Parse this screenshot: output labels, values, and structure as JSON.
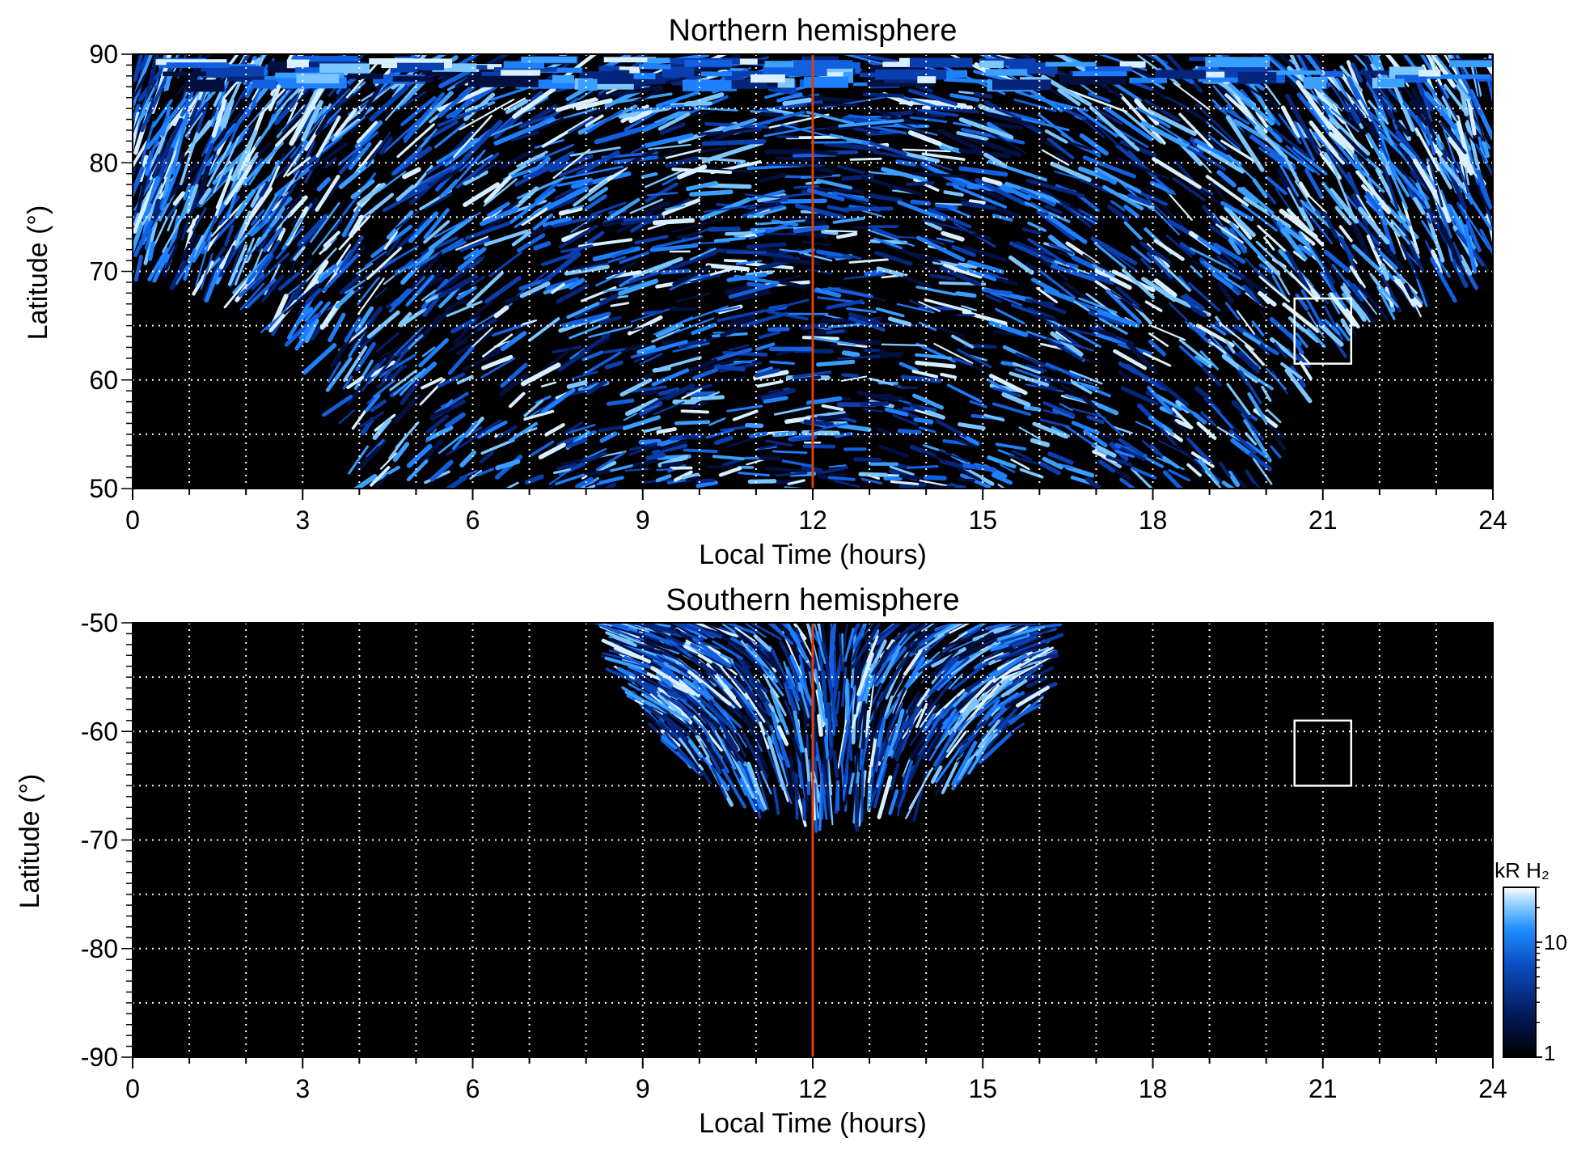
{
  "chart_data": [
    {
      "type": "heatmap",
      "title": "Northern hemisphere",
      "xlabel": "Local Time (hours)",
      "ylabel": "Latitude (°)",
      "xlim": [
        0,
        24
      ],
      "ylim": [
        50,
        90
      ],
      "x_ticks": [
        "0",
        "3",
        "6",
        "9",
        "12",
        "15",
        "18",
        "21",
        "24"
      ],
      "y_ticks": [
        "50",
        "60",
        "70",
        "80",
        "90"
      ],
      "grid": true,
      "grid_style": "dotted white, every 1 hour and every 5 degrees",
      "marker_line": {
        "local_time": 12,
        "color": "#d9400e"
      },
      "box": {
        "local_time_range": [
          20.5,
          21.5
        ],
        "latitude_range": [
          61.5,
          67.5
        ],
        "color": "#ffffff"
      },
      "coverage": {
        "description": "streaky auroral H2 emission, no data (black) outside the coverage envelope",
        "min_latitude_by_local_time": [
          {
            "lt": 0,
            "lat": 70
          },
          {
            "lt": 1,
            "lat": 69.5
          },
          {
            "lt": 2,
            "lat": 67.5
          },
          {
            "lt": 3,
            "lat": 64
          },
          {
            "lt": 3.5,
            "lat": 59
          },
          {
            "lt": 4,
            "lat": 50
          },
          {
            "lt": 20,
            "lat": 50
          },
          {
            "lt": 20.5,
            "lat": 58
          },
          {
            "lt": 21,
            "lat": 63
          },
          {
            "lt": 22,
            "lat": 66.5
          },
          {
            "lt": 23,
            "lat": 68.5
          },
          {
            "lt": 24,
            "lat": 70
          }
        ]
      }
    },
    {
      "type": "heatmap",
      "title": "Southern hemisphere",
      "xlabel": "Local Time (hours)",
      "ylabel": "Latitude (°)",
      "xlim": [
        0,
        24
      ],
      "ylim": [
        -90,
        -50
      ],
      "x_ticks": [
        "0",
        "3",
        "6",
        "9",
        "12",
        "15",
        "18",
        "21",
        "24"
      ],
      "y_ticks": [
        "-50",
        "-60",
        "-70",
        "-80",
        "-90"
      ],
      "grid": true,
      "grid_style": "dotted white, every 1 hour and every 5 degrees",
      "marker_line": {
        "local_time": 12,
        "color": "#d9400e"
      },
      "box": {
        "local_time_range": [
          20.5,
          21.5
        ],
        "latitude_range": [
          -65,
          -59
        ],
        "color": "#ffffff"
      },
      "coverage": {
        "description": "emission only in a bowl centred near noon local time",
        "local_time_range": [
          8.3,
          16.0
        ],
        "deepest_latitude": -67.5,
        "deepest_local_time": 12.4
      }
    }
  ],
  "colorbar": {
    "label": "kR H₂",
    "scale": "log",
    "range": [
      1,
      30
    ],
    "ticks": [
      "1",
      "10"
    ],
    "colors": [
      "#000000",
      "#031a5c",
      "#0a4fc4",
      "#1e8cff",
      "#8fd0ff",
      "#ffffff"
    ]
  }
}
